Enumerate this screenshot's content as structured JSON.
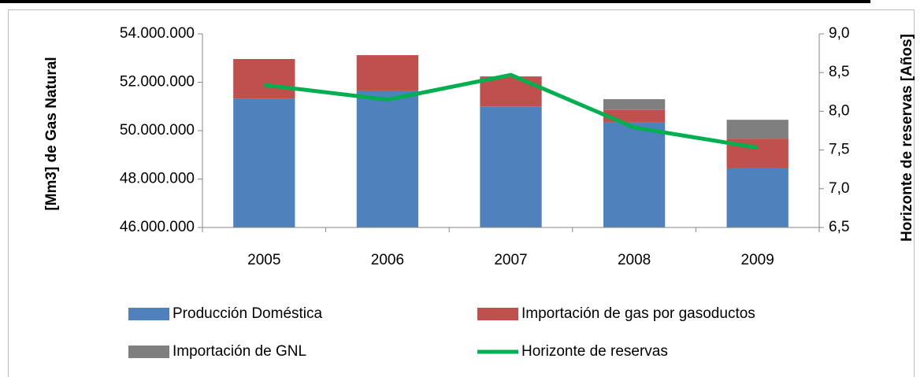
{
  "chart_data": {
    "type": "bar",
    "stacked": true,
    "y_label": "[Mm3] de Gas Natural",
    "y2_label": "Horizonte de reservas [Años]",
    "categories": [
      "2005",
      "2006",
      "2007",
      "2008",
      "2009"
    ],
    "series": [
      {
        "name": "Producción Doméstica",
        "color": "#4f81bd",
        "type": "bar",
        "values": [
          51330000,
          51660000,
          51000000,
          50330000,
          48440000
        ]
      },
      {
        "name": "Importación de gas por gasoductos",
        "color": "#c0504d",
        "type": "bar",
        "values": [
          1630000,
          1460000,
          1240000,
          520000,
          1230000
        ]
      },
      {
        "name": "Importación de GNL",
        "color": "#7f7f7f",
        "type": "bar",
        "values": [
          0,
          0,
          0,
          450000,
          780000
        ]
      },
      {
        "name": "Horizonte de reservas",
        "color": "#00b050",
        "type": "line",
        "axis": "y2",
        "values": [
          8.34,
          8.15,
          8.47,
          7.79,
          7.53
        ]
      }
    ],
    "ylim": [
      46000000,
      54000000
    ],
    "yticks": [
      {
        "value": 46000000,
        "label": "46.000.000"
      },
      {
        "value": 48000000,
        "label": "48.000.000"
      },
      {
        "value": 50000000,
        "label": "50.000.000"
      },
      {
        "value": 52000000,
        "label": "52.000.000"
      },
      {
        "value": 54000000,
        "label": "54.000.000"
      }
    ],
    "y2lim": [
      6.5,
      9.0
    ],
    "y2ticks": [
      {
        "value": 6.5,
        "label": "6,5"
      },
      {
        "value": 7.0,
        "label": "7,0"
      },
      {
        "value": 7.5,
        "label": "7,5"
      },
      {
        "value": 8.0,
        "label": "8,0"
      },
      {
        "value": 8.5,
        "label": "8,5"
      },
      {
        "value": 9.0,
        "label": "9,0"
      }
    ],
    "grid": false,
    "legend": "bottom"
  }
}
